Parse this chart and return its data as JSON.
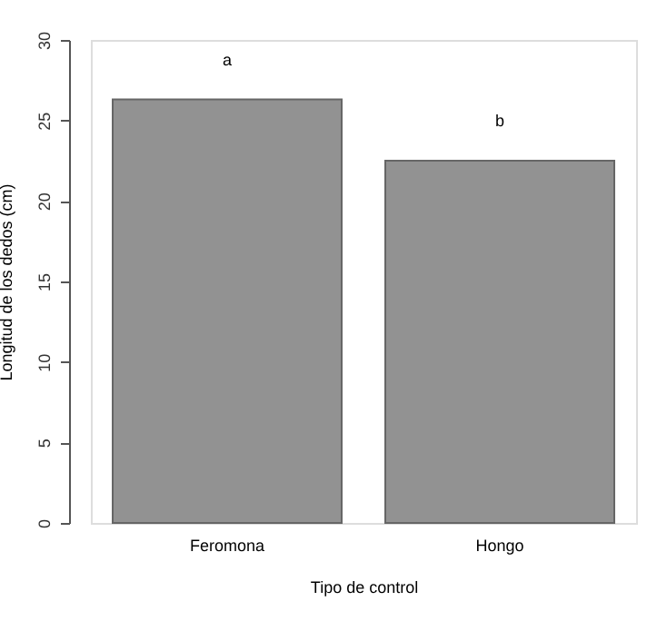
{
  "chart_data": {
    "type": "bar",
    "categories": [
      "Feromona",
      "Hongo"
    ],
    "values": [
      26.3,
      22.5
    ],
    "color": "#929292",
    "xlabel": "Tipo de control",
    "ylabel": "Longitud de los dedos (cm)",
    "ylim": [
      0,
      30
    ],
    "yticks": [
      0,
      5,
      10,
      15,
      20,
      25,
      30
    ],
    "grid": false,
    "annotations": [
      "a",
      "b"
    ]
  }
}
